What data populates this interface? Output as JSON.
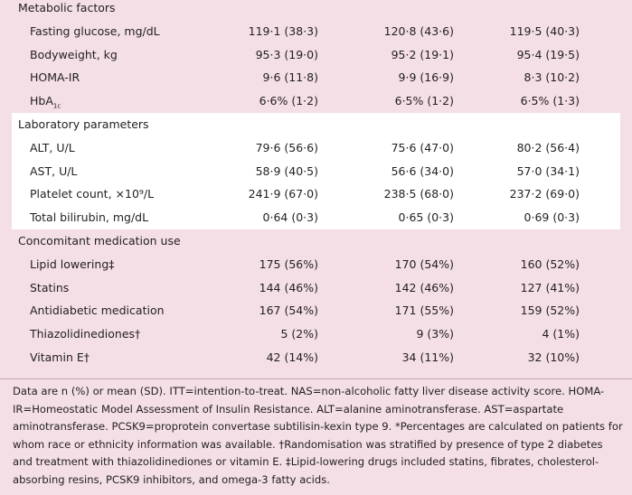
{
  "sections": [
    {
      "title": "Metabolic factors",
      "rows": [
        {
          "label": "Fasting glucose, mg/dL",
          "cells": [
            "119·1 (38·3)",
            "120·8 (43·6)",
            "119·5 (40·3)"
          ]
        },
        {
          "label": "Bodyweight, kg",
          "cells": [
            "95·3 (19·0)",
            "95·2 (19·1)",
            "95·4 (19·5)"
          ]
        },
        {
          "label": "HOMA-IR",
          "cells": [
            "9·6 (11·8)",
            "9·9 (16·9)",
            "8·3 (10·2)"
          ]
        },
        {
          "label": "HbA",
          "label_sub": "1c",
          "cells": [
            "6·6% (1·2)",
            "6·5% (1·2)",
            "6·5% (1·3)"
          ]
        }
      ]
    },
    {
      "title": "Laboratory parameters",
      "rows": [
        {
          "label": "ALT, U/L",
          "cells": [
            "79·6 (56·6)",
            "75·6 (47·0)",
            "80·2 (56·4)"
          ]
        },
        {
          "label": "AST, U/L",
          "cells": [
            "58·9 (40·5)",
            "56·6 (34·0)",
            "57·0 (34·1)"
          ]
        },
        {
          "label": "Platelet count, ×10⁹/L",
          "cells": [
            "241·9 (67·0)",
            "238·5 (68·0)",
            "237·2 (69·0)"
          ]
        },
        {
          "label": "Total bilirubin, mg/dL",
          "cells": [
            "0·64 (0·3)",
            "0·65 (0·3)",
            "0·69 (0·3)"
          ]
        }
      ]
    },
    {
      "title": "Concomitant medication use",
      "rows": [
        {
          "label": "Lipid lowering‡",
          "cells": [
            "175 (56%)",
            "170 (54%)",
            "160 (52%)"
          ]
        },
        {
          "label": "Statins",
          "cells": [
            "144 (46%)",
            "142 (46%)",
            "127 (41%)"
          ]
        },
        {
          "label": "Antidiabetic medication",
          "cells": [
            "167 (54%)",
            "171 (55%)",
            "159 (52%)"
          ]
        },
        {
          "label": "Thiazolidinediones†",
          "cells": [
            "5 (2%)",
            "9 (3%)",
            "4 (1%)"
          ]
        },
        {
          "label": "Vitamin E†",
          "cells": [
            "42 (14%)",
            "34 (11%)",
            "32 (10%)"
          ]
        }
      ]
    }
  ],
  "footnote": "Data are n (%) or mean (SD). ITT=intention-to-treat. NAS=non-alcoholic fatty liver disease activity score. HOMA-IR=Homeostatic Model Assessment of Insulin Resistance. ALT=alanine aminotransferase. AST=aspartate aminotransferase. PCSK9=proprotein convertase subtilisin-kexin type 9. *Percentages are calculated on patients for whom race or ethnicity information was available. †Randomisation was stratified by presence of type 2 diabetes and treatment with thiazolidinediones or vitamin E. ‡Lipid-lowering drugs included statins, fibrates, cholesterol-absorbing resins, PCSK9 inhibitors, and omega-3 fatty acids."
}
